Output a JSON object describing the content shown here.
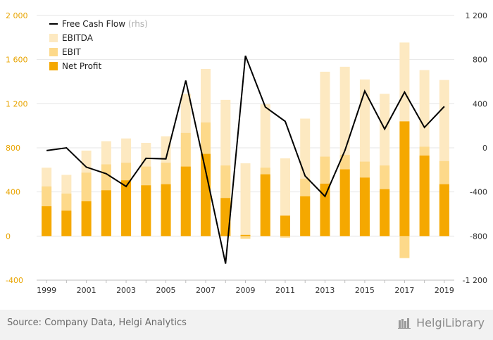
{
  "chart_data": {
    "type": "bar",
    "categories": [
      "1999",
      "2000",
      "2001",
      "2002",
      "2003",
      "2004",
      "2005",
      "2006",
      "2007",
      "2008",
      "2009",
      "2010",
      "2011",
      "2012",
      "2013",
      "2014",
      "2015",
      "2016",
      "2017",
      "2018",
      "2019"
    ],
    "x_tick_labels": [
      "1999",
      "2001",
      "2003",
      "2005",
      "2007",
      "2009",
      "2011",
      "2013",
      "2015",
      "2017",
      "2019"
    ],
    "left_axis": {
      "ylim": [
        -400,
        2000
      ],
      "ticks": [
        -400,
        0,
        400,
        800,
        1200,
        1600,
        2000
      ],
      "tick_labels": [
        "-400",
        "0",
        "400",
        "800",
        "1 200",
        "1 600",
        "2 000"
      ]
    },
    "right_axis": {
      "ylim": [
        -1200,
        1200
      ],
      "ticks": [
        -1200,
        -800,
        -400,
        0,
        400,
        800,
        1200
      ],
      "tick_labels": [
        "-1 200",
        "-800",
        "-400",
        "0",
        "400",
        "800",
        "1 200"
      ]
    },
    "series": [
      {
        "name": "EBITDA",
        "axis": "left",
        "color": "#fde9c1",
        "values": [
          620,
          555,
          775,
          860,
          885,
          845,
          905,
          1290,
          1515,
          1235,
          660,
          1195,
          705,
          1065,
          1490,
          1535,
          1420,
          1290,
          1755,
          1505,
          1415
        ]
      },
      {
        "name": "EBIT",
        "axis": "left",
        "color": "#fdd98a",
        "values": [
          450,
          385,
          575,
          650,
          665,
          630,
          665,
          935,
          1030,
          640,
          -25,
          620,
          -15,
          520,
          720,
          735,
          675,
          640,
          -200,
          810,
          680
        ]
      },
      {
        "name": "Net Profit",
        "axis": "left",
        "color": "#f5a800",
        "values": [
          270,
          230,
          315,
          415,
          505,
          460,
          470,
          630,
          745,
          345,
          10,
          560,
          185,
          360,
          475,
          605,
          530,
          425,
          1040,
          730,
          470
        ]
      },
      {
        "name": "Free Cash Flow",
        "suffix": "(rhs)",
        "axis": "right",
        "type": "line",
        "color": "#000000",
        "values": [
          -25,
          0,
          -175,
          -235,
          -350,
          -95,
          -100,
          610,
          -210,
          -1050,
          835,
          370,
          240,
          -255,
          -440,
          -25,
          515,
          170,
          505,
          185,
          375
        ]
      }
    ],
    "legend_order": [
      "Free Cash Flow",
      "EBITDA",
      "EBIT",
      "Net Profit"
    ],
    "legend_placement": "top-left",
    "grid": true,
    "colors": {
      "left_axis_text": "#e8a400",
      "right_axis_text": "#333333",
      "grid": "#e6e6e6"
    }
  },
  "footer": {
    "source": "Source: Company Data, Helgi Analytics",
    "brand": "HelgiLibrary"
  }
}
